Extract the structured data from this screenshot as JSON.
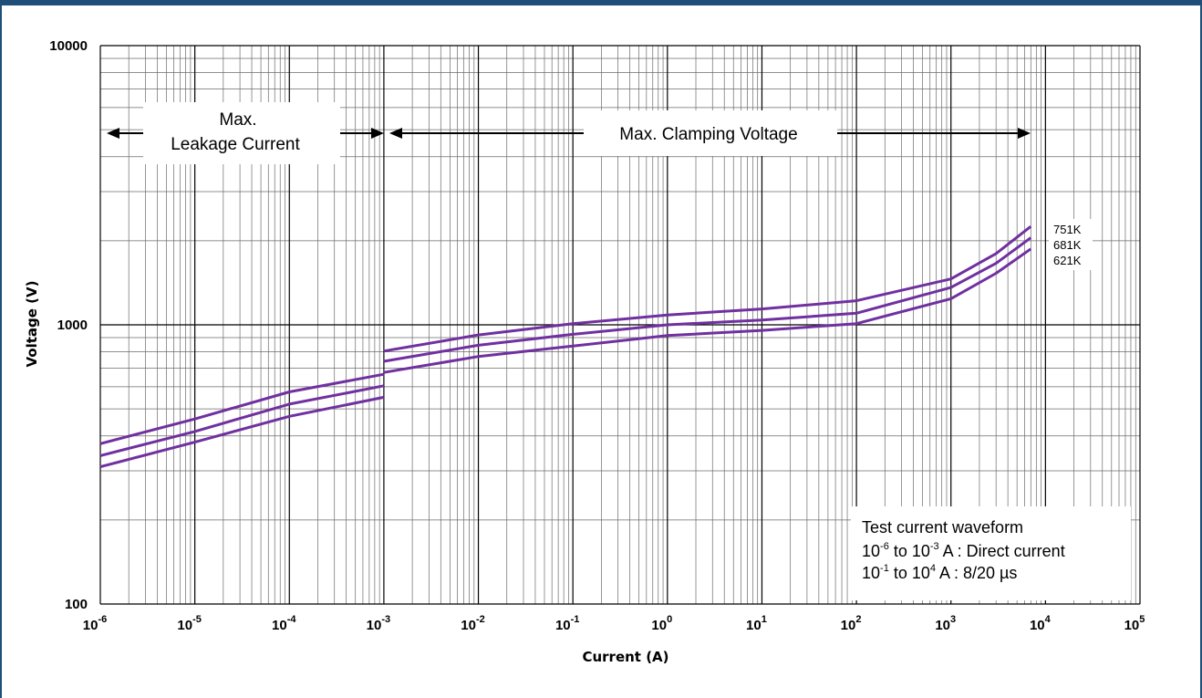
{
  "chart_data": {
    "type": "line",
    "x_scale": "log",
    "y_scale": "log",
    "xlim": [
      1e-06,
      100000
    ],
    "ylim": [
      100,
      10000
    ],
    "grid": true,
    "xlabel": "Current (A)",
    "ylabel": "Voltage  (V)",
    "x_tick_labels": [
      {
        "base": "10",
        "exp": "-6"
      },
      {
        "base": "10",
        "exp": "-5"
      },
      {
        "base": "10",
        "exp": "-4"
      },
      {
        "base": "10",
        "exp": "-3"
      },
      {
        "base": "10",
        "exp": "-2"
      },
      {
        "base": "10",
        "exp": "-1"
      },
      {
        "base": "10",
        "exp": "0"
      },
      {
        "base": "10",
        "exp": "1"
      },
      {
        "base": "10",
        "exp": "2"
      },
      {
        "base": "10",
        "exp": "3"
      },
      {
        "base": "10",
        "exp": "4"
      },
      {
        "base": "10",
        "exp": "5"
      }
    ],
    "y_tick_labels": [
      "100",
      "1000",
      "10000"
    ],
    "line_color": "#7030a0",
    "series": [
      {
        "name": "751K",
        "segments": [
          {
            "x": [
              1e-06,
              1e-05,
              0.0001,
              0.001
            ],
            "y": [
              375,
              460,
              575,
              665
            ]
          },
          {
            "x": [
              0.001,
              0.01,
              0.1,
              1,
              10,
              100,
              1000,
              3000,
              7000
            ],
            "y": [
              805,
              920,
              1010,
              1085,
              1140,
              1220,
              1460,
              1800,
              2250
            ]
          }
        ]
      },
      {
        "name": "681K",
        "segments": [
          {
            "x": [
              1e-06,
              1e-05,
              0.0001,
              0.001
            ],
            "y": [
              340,
              415,
              520,
              605
            ]
          },
          {
            "x": [
              0.001,
              0.01,
              0.1,
              1,
              10,
              100,
              1000,
              3000,
              7000
            ],
            "y": [
              740,
              845,
              925,
              1000,
              1040,
              1100,
              1360,
              1660,
              2050
            ]
          }
        ]
      },
      {
        "name": "621K",
        "segments": [
          {
            "x": [
              1e-06,
              1e-05,
              0.0001,
              0.001
            ],
            "y": [
              310,
              380,
              470,
              550
            ]
          },
          {
            "x": [
              0.001,
              0.01,
              0.1,
              1,
              10,
              100,
              1000,
              3000,
              7000
            ],
            "y": [
              675,
              770,
              840,
              915,
              955,
              1010,
              1240,
              1530,
              1870
            ]
          }
        ]
      }
    ],
    "annotations": {
      "leakage_line1": "Max.",
      "leakage_line2": "Leakage Current",
      "clamping": "Max. Clamping Voltage",
      "test_title": "Test current waveform",
      "test_row1": {
        "base_a": "10",
        "exp_a": "-6",
        "to_base": "  to 10",
        "exp_b": "-3",
        "rest": " A : Direct current"
      },
      "test_row2": {
        "base_a": "10",
        "exp_a": "-1",
        "to_base": "  to 10",
        "exp_b": "4",
        "rest": "  A : 8/20 µs"
      }
    }
  }
}
